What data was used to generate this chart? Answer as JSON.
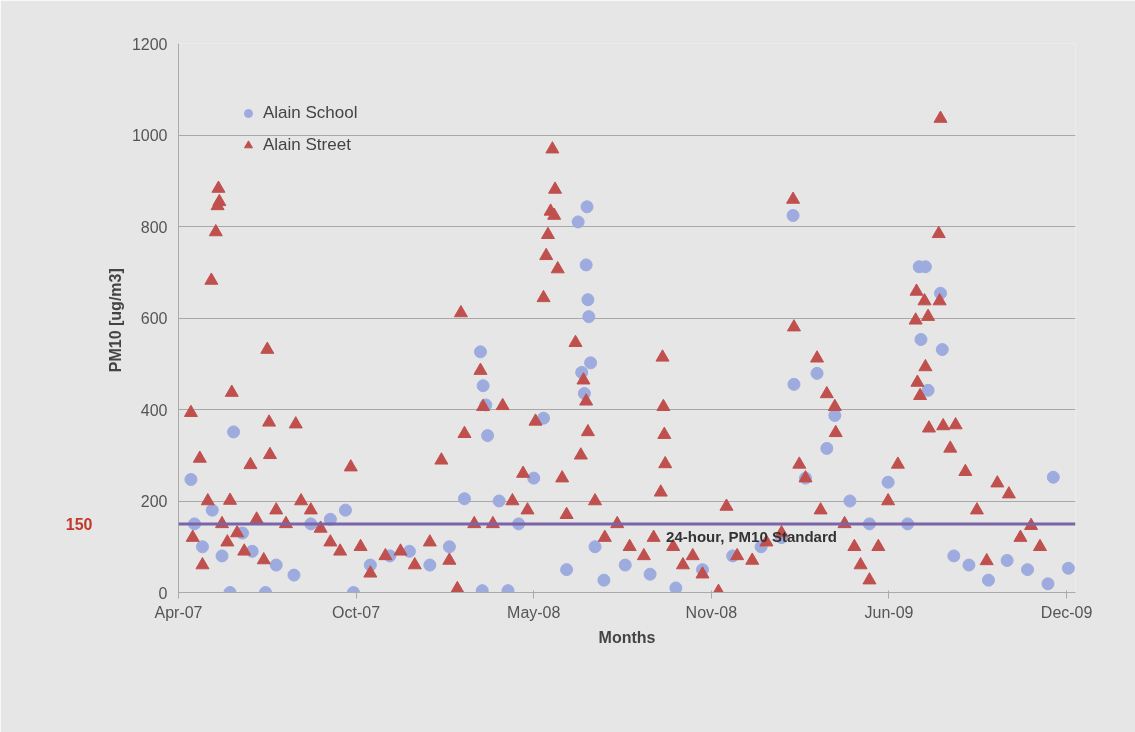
{
  "chart_data": {
    "type": "scatter",
    "xlabel": "Months",
    "ylabel": "PM10  [ug/m3]",
    "xlim": [
      "2007-04-01",
      "2010-01-05"
    ],
    "ylim": [
      0,
      1200
    ],
    "xticks": [
      {
        "value": "2007-04-01",
        "label": "Apr-07"
      },
      {
        "value": "2007-10-18",
        "label": "Oct-07"
      },
      {
        "value": "2008-05-05",
        "label": "May-08"
      },
      {
        "value": "2008-11-21",
        "label": "Nov-08"
      },
      {
        "value": "2009-06-09",
        "label": "Jun-09"
      },
      {
        "value": "2009-12-26",
        "label": "Dec-09"
      }
    ],
    "yticks": [
      0,
      200,
      400,
      600,
      800,
      1000,
      1200
    ],
    "grid": "y",
    "legend": "top left",
    "ref_lines": [
      {
        "axis": "y",
        "value": 150,
        "label": "24-hour, PM10 Standard",
        "color": "#7b65a8"
      }
    ],
    "annotations": [
      "150"
    ],
    "series": [
      {
        "name": "Alain School",
        "color": "#9dabdf",
        "marker": "circle",
        "x": [
          "2007-04-15",
          "2007-04-19",
          "2007-04-28",
          "2007-05-09",
          "2007-05-20",
          "2007-05-29",
          "2007-06-02",
          "2007-06-12",
          "2007-06-23",
          "2007-07-08",
          "2007-07-20",
          "2007-08-09",
          "2007-08-28",
          "2007-09-19",
          "2007-10-06",
          "2007-10-15",
          "2007-11-03",
          "2007-11-25",
          "2007-12-17",
          "2008-01-09",
          "2008-01-31",
          "2008-02-17",
          "2008-03-06",
          "2008-03-08",
          "2008-03-09",
          "2008-03-12",
          "2008-03-14",
          "2008-03-27",
          "2008-04-06",
          "2008-04-18",
          "2008-05-05",
          "2008-05-16",
          "2008-06-11",
          "2008-06-24",
          "2008-06-28",
          "2008-07-01",
          "2008-07-03",
          "2008-07-04",
          "2008-07-05",
          "2008-07-06",
          "2008-07-08",
          "2008-07-13",
          "2008-07-23",
          "2008-08-16",
          "2008-09-13",
          "2008-10-12",
          "2008-11-11",
          "2008-12-15",
          "2009-01-16",
          "2009-02-08",
          "2009-02-21",
          "2009-02-22",
          "2009-03-07",
          "2009-03-20",
          "2009-03-31",
          "2009-04-09",
          "2009-04-26",
          "2009-05-18",
          "2009-06-08",
          "2009-06-30",
          "2009-07-13",
          "2009-07-15",
          "2009-07-20",
          "2009-07-23",
          "2009-08-06",
          "2009-08-08",
          "2009-08-21",
          "2009-09-07",
          "2009-09-29",
          "2009-10-20",
          "2009-11-12",
          "2009-12-05",
          "2009-12-11",
          "2009-12-28"
        ],
        "values": [
          247,
          150,
          100,
          180,
          80,
          0,
          351,
          130,
          90,
          0,
          60,
          38,
          150,
          160,
          180,
          0,
          60,
          80,
          90,
          60,
          100,
          205,
          526,
          4,
          452,
          410,
          343,
          200,
          4,
          150,
          250,
          381,
          50,
          810,
          481,
          435,
          716,
          843,
          640,
          603,
          502,
          100,
          27,
          60,
          40,
          10,
          50,
          80,
          100,
          120,
          824,
          455,
          250,
          479,
          315,
          387,
          200,
          150,
          241,
          150,
          712,
          553,
          712,
          442,
          654,
          531,
          80,
          60,
          27,
          70,
          50,
          19,
          252,
          53
        ]
      },
      {
        "name": "Alain Street",
        "color": "#c0504d",
        "marker": "triangle",
        "x": [
          "2007-04-15",
          "2007-04-17",
          "2007-04-25",
          "2007-04-28",
          "2007-05-04",
          "2007-05-08",
          "2007-05-13",
          "2007-05-15",
          "2007-05-16",
          "2007-05-17",
          "2007-05-20",
          "2007-05-26",
          "2007-05-29",
          "2007-05-31",
          "2007-06-06",
          "2007-06-14",
          "2007-06-21",
          "2007-06-28",
          "2007-07-06",
          "2007-07-10",
          "2007-07-12",
          "2007-07-13",
          "2007-07-20",
          "2007-07-31",
          "2007-08-11",
          "2007-08-17",
          "2007-08-28",
          "2007-09-08",
          "2007-09-19",
          "2007-09-30",
          "2007-10-12",
          "2007-10-23",
          "2007-11-03",
          "2007-11-20",
          "2007-12-07",
          "2007-12-23",
          "2008-01-09",
          "2008-01-22",
          "2008-01-31",
          "2008-02-09",
          "2008-02-13",
          "2008-02-17",
          "2008-02-28",
          "2008-03-06",
          "2008-03-09",
          "2008-03-20",
          "2008-03-31",
          "2008-04-11",
          "2008-04-23",
          "2008-04-28",
          "2008-05-07",
          "2008-05-16",
          "2008-05-19",
          "2008-05-21",
          "2008-05-24",
          "2008-05-26",
          "2008-05-28",
          "2008-05-29",
          "2008-06-01",
          "2008-06-06",
          "2008-06-11",
          "2008-06-21",
          "2008-06-27",
          "2008-06-30",
          "2008-07-03",
          "2008-07-05",
          "2008-07-13",
          "2008-07-24",
          "2008-08-07",
          "2008-08-21",
          "2008-09-06",
          "2008-09-17",
          "2008-09-25",
          "2008-09-27",
          "2008-09-28",
          "2008-09-29",
          "2008-09-30",
          "2008-10-09",
          "2008-10-20",
          "2008-10-31",
          "2008-11-11",
          "2008-11-29",
          "2008-12-08",
          "2008-12-20",
          "2009-01-06",
          "2009-01-22",
          "2009-02-08",
          "2009-02-21",
          "2009-02-22",
          "2009-02-28",
          "2009-03-07",
          "2009-03-20",
          "2009-03-24",
          "2009-03-31",
          "2009-04-09",
          "2009-04-10",
          "2009-04-20",
          "2009-05-01",
          "2009-05-08",
          "2009-05-18",
          "2009-05-28",
          "2009-06-08",
          "2009-06-19",
          "2009-07-09",
          "2009-07-10",
          "2009-07-11",
          "2009-07-14",
          "2009-07-19",
          "2009-07-20",
          "2009-07-23",
          "2009-07-24",
          "2009-08-04",
          "2009-08-05",
          "2009-08-06",
          "2009-08-09",
          "2009-08-17",
          "2009-08-23",
          "2009-09-03",
          "2009-09-16",
          "2009-09-27",
          "2009-10-09",
          "2009-10-22",
          "2009-11-04",
          "2009-11-16",
          "2009-11-26"
        ],
        "values": [
          393,
          120,
          293,
          60,
          200,
          682,
          788,
          845,
          883,
          854,
          150,
          110,
          201,
          437,
          130,
          90,
          279,
          160,
          71,
          531,
          372,
          301,
          180,
          150,
          368,
          200,
          180,
          140,
          110,
          90,
          274,
          100,
          42,
          80,
          90,
          60,
          110,
          289,
          70,
          8,
          611,
          347,
          150,
          485,
          406,
          150,
          408,
          200,
          260,
          180,
          374,
          644,
          736,
          782,
          833,
          969,
          824,
          881,
          707,
          250,
          170,
          546,
          300,
          464,
          418,
          351,
          200,
          120,
          150,
          100,
          80,
          120,
          219,
          514,
          406,
          345,
          281,
          100,
          60,
          80,
          40,
          2,
          188,
          80,
          70,
          110,
          130,
          859,
          580,
          280,
          250,
          512,
          180,
          434,
          406,
          349,
          150,
          100,
          60,
          27,
          100,
          200,
          280,
          595,
          658,
          459,
          430,
          637,
          493,
          603,
          359,
          784,
          637,
          1036,
          364,
          315,
          366,
          264,
          180,
          69,
          239,
          215,
          120,
          146,
          100
        ]
      }
    ]
  }
}
